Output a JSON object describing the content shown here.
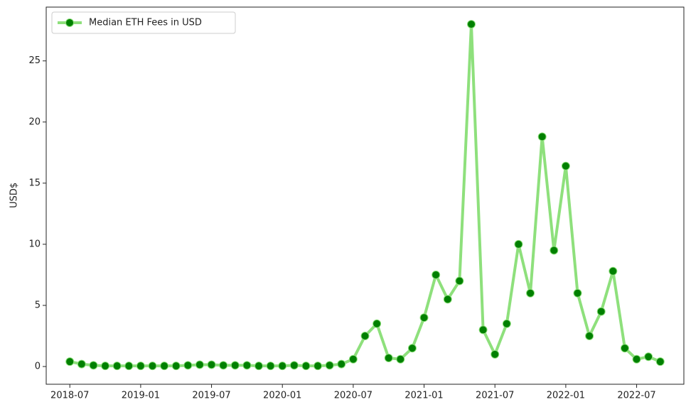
{
  "chart_data": {
    "type": "line",
    "ylabel": "USD$",
    "x": [
      "2018-07",
      "2018-08",
      "2018-09",
      "2018-10",
      "2018-11",
      "2018-12",
      "2019-01",
      "2019-02",
      "2019-03",
      "2019-04",
      "2019-05",
      "2019-06",
      "2019-07",
      "2019-08",
      "2019-09",
      "2019-10",
      "2019-11",
      "2019-12",
      "2020-01",
      "2020-02",
      "2020-03",
      "2020-04",
      "2020-05",
      "2020-06",
      "2020-07",
      "2020-08",
      "2020-09",
      "2020-10",
      "2020-11",
      "2020-12",
      "2021-01",
      "2021-02",
      "2021-03",
      "2021-04",
      "2021-05",
      "2021-06",
      "2021-07",
      "2021-08",
      "2021-09",
      "2021-10",
      "2021-11",
      "2021-12",
      "2022-01",
      "2022-02",
      "2022-03",
      "2022-04",
      "2022-05",
      "2022-06",
      "2022-07",
      "2022-08",
      "2022-09"
    ],
    "series": [
      {
        "name": "Median ETH Fees in USD",
        "color": "#8ee07c",
        "marker_color": "#008000",
        "values": [
          0.4,
          0.2,
          0.1,
          0.05,
          0.05,
          0.05,
          0.05,
          0.05,
          0.05,
          0.05,
          0.1,
          0.15,
          0.15,
          0.1,
          0.1,
          0.1,
          0.05,
          0.05,
          0.05,
          0.1,
          0.05,
          0.05,
          0.1,
          0.2,
          0.6,
          2.5,
          3.5,
          0.7,
          0.6,
          1.5,
          4.0,
          7.5,
          5.5,
          7.0,
          28.0,
          3.0,
          1.0,
          3.5,
          10.0,
          6.0,
          18.8,
          9.5,
          16.4,
          6.0,
          2.5,
          4.5,
          7.8,
          1.5,
          0.6,
          0.8,
          0.4
        ]
      }
    ],
    "xlim": [
      "2018-05",
      "2022-11"
    ],
    "xticks": [
      "2018-07",
      "2019-01",
      "2019-07",
      "2020-01",
      "2020-07",
      "2021-01",
      "2021-07",
      "2022-01",
      "2022-07"
    ],
    "ylim": [
      -1.45,
      29.4
    ],
    "yticks": [
      0,
      5,
      10,
      15,
      20,
      25
    ],
    "grid": false,
    "legend": "upper left"
  }
}
